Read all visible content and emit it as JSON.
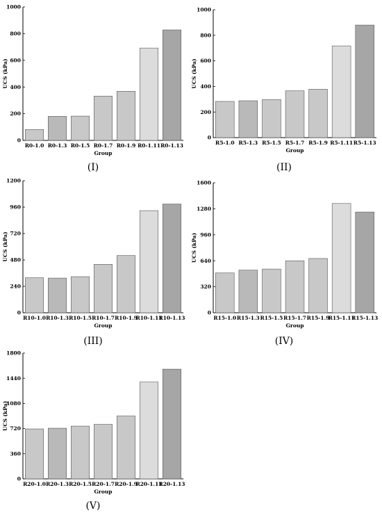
{
  "colors": {
    "bar_light": "#c8c8c8",
    "bar_mid": "#b9b9b9",
    "bar_pale": "#dcdcdc",
    "bar_dark": "#a6a6a6",
    "axis": "#000000"
  },
  "chart_data": [
    {
      "type": "bar",
      "panel_label": "(I)",
      "xlabel": "Group",
      "ylabel": "UCS (kPa)",
      "ylim": [
        0,
        1000
      ],
      "yticks": [
        0,
        200,
        400,
        600,
        800,
        1000
      ],
      "categories": [
        "R0-1.0",
        "R0-1.3",
        "R0-1.5",
        "R0-1.7",
        "R0-1.9",
        "R0-1.11",
        "R0-1.13"
      ],
      "values": [
        82,
        180,
        182,
        332,
        368,
        692,
        828
      ],
      "grid": false
    },
    {
      "type": "bar",
      "panel_label": "(II)",
      "xlabel": "Group",
      "ylabel": "UCS (kPa)",
      "ylim": [
        0,
        1000
      ],
      "yticks": [
        0,
        200,
        400,
        600,
        800,
        1000
      ],
      "categories": [
        "R5-1.0",
        "R5-1.3",
        "R5-1.5",
        "R5-1.7",
        "R5-1.9",
        "R5-1.11",
        "R5-1.13"
      ],
      "values": [
        283,
        288,
        298,
        366,
        378,
        717,
        880
      ],
      "grid": false
    },
    {
      "type": "bar",
      "panel_label": "(III)",
      "xlabel": "Group",
      "ylabel": "UCS (kPa)",
      "ylim": [
        0,
        1200
      ],
      "yticks": [
        0,
        240,
        480,
        720,
        960,
        1200
      ],
      "categories": [
        "R10-1.0",
        "R10-1.3",
        "R10-1.5",
        "R10-1.7",
        "R10-1.9",
        "R10-1.11",
        "R10-1.13"
      ],
      "values": [
        318,
        315,
        328,
        440,
        520,
        928,
        988
      ],
      "grid": false
    },
    {
      "type": "bar",
      "panel_label": "(IV)",
      "xlabel": "Group",
      "ylabel": "UCS (kPa)",
      "ylim": [
        0,
        1600
      ],
      "yticks": [
        0,
        320,
        640,
        960,
        1280,
        1600
      ],
      "categories": [
        "R15-1.0",
        "R15-1.3",
        "R15-1.5",
        "R15-1.7",
        "R15-1.9",
        "R15-1.11",
        "R15-1.13"
      ],
      "values": [
        490,
        525,
        538,
        640,
        668,
        1345,
        1240
      ],
      "grid": false
    },
    {
      "type": "bar",
      "panel_label": "(V)",
      "xlabel": "Group",
      "ylabel": "UCS (kPa)",
      "ylim": [
        0,
        1800
      ],
      "yticks": [
        0,
        360,
        720,
        1080,
        1440,
        1800
      ],
      "categories": [
        "R20-1.0",
        "R20-1.3",
        "R20-1.5",
        "R20-1.7",
        "R20-1.9",
        "R20-1.11",
        "R20-1.13"
      ],
      "values": [
        715,
        725,
        755,
        780,
        900,
        1385,
        1570
      ],
      "grid": false
    }
  ]
}
